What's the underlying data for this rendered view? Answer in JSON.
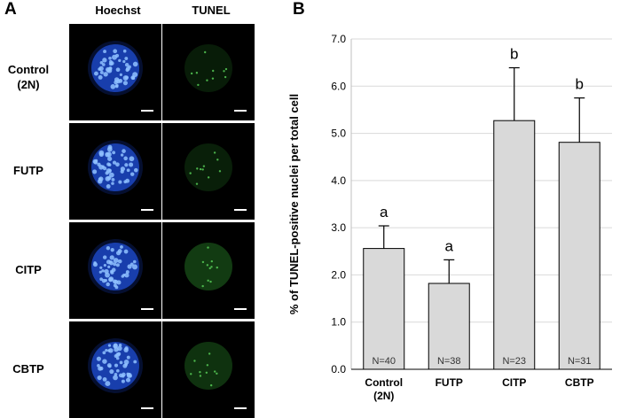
{
  "panel_a": {
    "letter": "A",
    "columns": [
      "Hoechst",
      "TUNEL"
    ],
    "rows": [
      {
        "label_line1": "Control",
        "label_line2": "(2N)"
      },
      {
        "label_line1": "FUTP",
        "label_line2": ""
      },
      {
        "label_line1": "CITP",
        "label_line2": ""
      },
      {
        "label_line1": "CBTP",
        "label_line2": ""
      }
    ],
    "colors": {
      "hoechst": "#2f6bff",
      "tunel": "#2f9a2f",
      "scale_bar": "#ffffff"
    }
  },
  "panel_b": {
    "letter": "B"
  },
  "chart_data": {
    "type": "bar",
    "categories": [
      "Control (2N)",
      "FUTP",
      "CITP",
      "CBTP"
    ],
    "category_lines": [
      [
        "Control",
        "(2N)"
      ],
      [
        "FUTP"
      ],
      [
        "CITP"
      ],
      [
        "CBTP"
      ]
    ],
    "values": [
      2.56,
      1.82,
      5.27,
      4.81
    ],
    "errors": [
      0.48,
      0.5,
      1.12,
      0.94
    ],
    "significance": [
      "a",
      "a",
      "b",
      "b"
    ],
    "n_labels": [
      "N=40",
      "N=38",
      "N=23",
      "N=31"
    ],
    "ylabel": "% of TUNEL-positive nuclei per total cell",
    "xlabel": "",
    "ylim": [
      0,
      7
    ],
    "yticks": [
      "0.0",
      "1.0",
      "2.0",
      "3.0",
      "4.0",
      "5.0",
      "6.0",
      "7.0"
    ],
    "grid": true,
    "bar_color": "#d9d9d9",
    "bar_edge_color": "#000000",
    "grid_color": "#d9d9d9"
  }
}
